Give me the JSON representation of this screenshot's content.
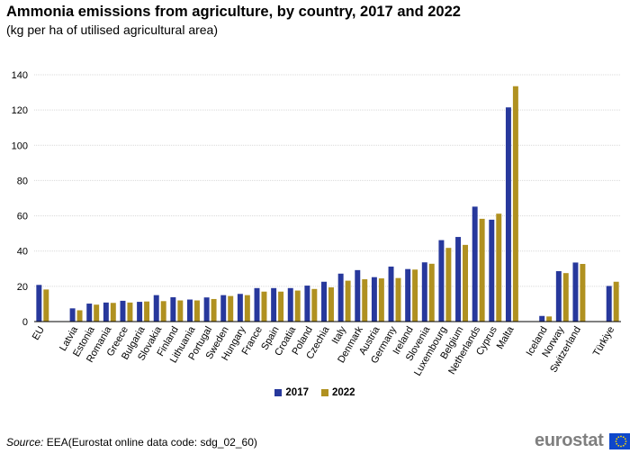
{
  "title": "Ammonia emissions from agriculture, by country, 2017 and 2022",
  "subtitle": "(kg per ha of utilised agricultural area)",
  "source_label": "Source:",
  "source_text": "EEA(Eurostat online data code: sdg_02_60)",
  "brand": "eurostat",
  "colors": {
    "series_2017": "#27389c",
    "series_2022": "#b09120",
    "grid": "#d9d9d9",
    "axis": "#000000"
  },
  "chart_data": {
    "type": "bar",
    "title": "Ammonia emissions from agriculture, by country, 2017 and 2022",
    "subtitle": "(kg per ha of utilised agricultural area)",
    "xlabel": "",
    "ylabel": "",
    "ylim": [
      0,
      140
    ],
    "yticks": [
      0,
      20,
      40,
      60,
      80,
      100,
      120,
      140
    ],
    "grid": true,
    "legend_position": "bottom",
    "groups": [
      [
        "EU"
      ],
      [
        "Latvia",
        "Estonia",
        "Romania",
        "Greece",
        "Bulgaria",
        "Slovakia",
        "Finland",
        "Lithuania",
        "Portugal",
        "Sweden",
        "Hungary",
        "France",
        "Spain",
        "Croatia",
        "Poland",
        "Czechia",
        "Italy",
        "Denmark",
        "Austria",
        "Germany",
        "Ireland",
        "Slovenia",
        "Luxembourg",
        "Belgium",
        "Netherlands",
        "Cyprus",
        "Malta"
      ],
      [
        "Iceland",
        "Norway",
        "Switzerland"
      ],
      [
        "Türkiye"
      ]
    ],
    "categories": [
      "EU",
      "Latvia",
      "Estonia",
      "Romania",
      "Greece",
      "Bulgaria",
      "Slovakia",
      "Finland",
      "Lithuania",
      "Portugal",
      "Sweden",
      "Hungary",
      "France",
      "Spain",
      "Croatia",
      "Poland",
      "Czechia",
      "Italy",
      "Denmark",
      "Austria",
      "Germany",
      "Ireland",
      "Slovenia",
      "Luxembourg",
      "Belgium",
      "Netherlands",
      "Cyprus",
      "Malta",
      "Iceland",
      "Norway",
      "Switzerland",
      "Türkiye"
    ],
    "series": [
      {
        "name": "2017",
        "values": [
          20.8,
          7.5,
          10.2,
          10.8,
          11.8,
          11.2,
          15.0,
          13.8,
          12.5,
          13.7,
          15.0,
          15.7,
          19.0,
          19.0,
          19.0,
          20.4,
          22.6,
          27.2,
          29.2,
          25.2,
          31.2,
          29.8,
          33.6,
          46.2,
          48.0,
          65.2,
          57.8,
          121.5,
          3.2,
          28.6,
          33.5,
          20.2
        ]
      },
      {
        "name": "2022",
        "values": [
          18.2,
          6.4,
          9.6,
          10.6,
          10.8,
          11.4,
          11.6,
          12.0,
          12.0,
          12.8,
          14.5,
          15.0,
          17.0,
          17.0,
          17.6,
          18.5,
          19.4,
          23.2,
          24.0,
          24.5,
          24.7,
          29.5,
          32.8,
          41.8,
          43.5,
          58.3,
          61.2,
          133.5,
          2.9,
          27.5,
          32.7,
          22.6
        ]
      }
    ]
  }
}
